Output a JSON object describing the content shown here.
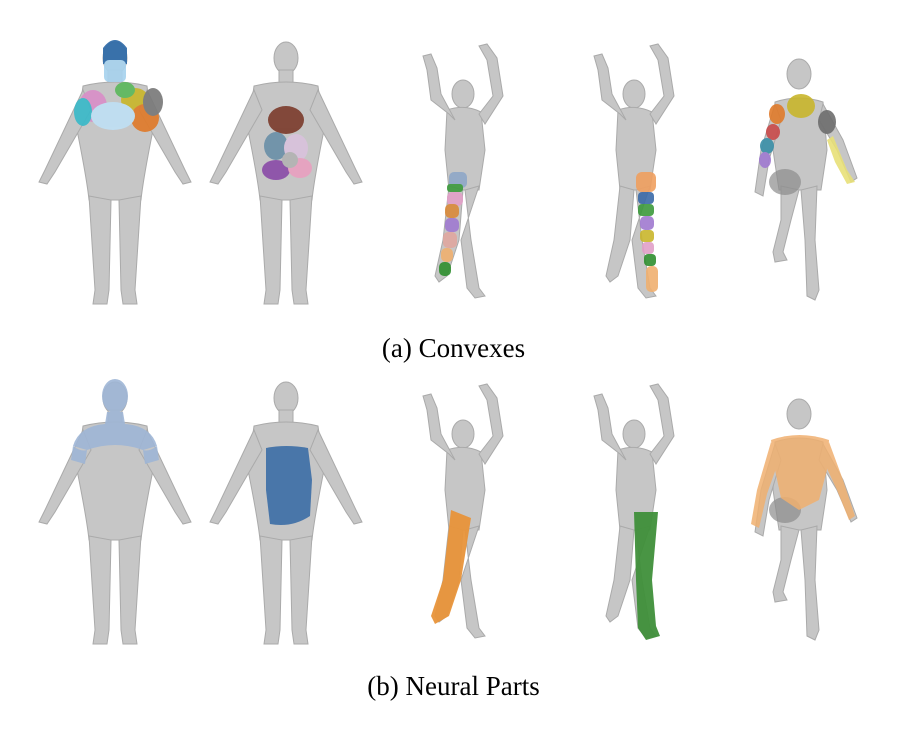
{
  "captions": {
    "convexes": "(a) Convexes",
    "neural_parts": "(b) Neural Parts"
  },
  "colors": {
    "body": "#c6c6c6",
    "body_stroke": "#a8a8a8",
    "blue_part": "#9fb6d6",
    "dark_blue_part": "#3e6fa6",
    "orange_part": "#e8933a",
    "green_part": "#3f8f3a",
    "peach_part": "#f0c08a"
  },
  "icons": {
    "a_pose_figure": "human-a-pose-icon",
    "raised_arms_figure": "human-raised-arms-icon",
    "running_figure": "human-running-icon"
  }
}
